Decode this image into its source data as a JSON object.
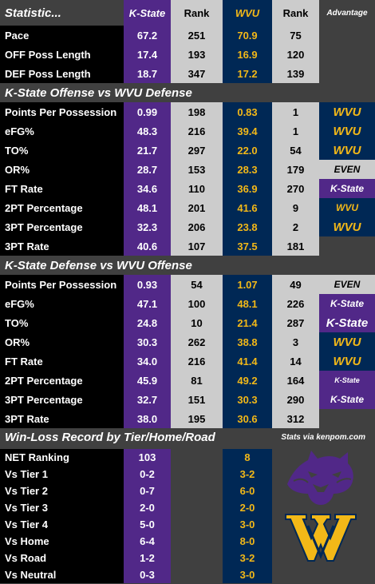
{
  "header": {
    "title": "Statistic...",
    "kstate": "K-State",
    "rank": "Rank",
    "wvu": "WVU",
    "rank2": "Rank",
    "advantage": "Advantage"
  },
  "pace_rows": [
    {
      "label": "Pace",
      "ks": "67.2",
      "kr": "251",
      "wv": "70.9",
      "wr": "75"
    },
    {
      "label": "OFF Poss Length",
      "ks": "17.4",
      "kr": "193",
      "wv": "16.9",
      "wr": "120"
    },
    {
      "label": "DEF Poss Length",
      "ks": "18.7",
      "kr": "347",
      "wv": "17.2",
      "wr": "139"
    }
  ],
  "section_ks_off": {
    "title": "K-State Offense vs WVU Defense",
    "rows": [
      {
        "label": "Points Per Possession",
        "ks": "0.99",
        "kr": "198",
        "wv": "0.83",
        "wr": "1",
        "adv": "WVU",
        "adv_style": "wvu"
      },
      {
        "label": "eFG%",
        "ks": "48.3",
        "kr": "216",
        "wv": "39.4",
        "wr": "1",
        "adv": "WVU",
        "adv_style": "wvu"
      },
      {
        "label": "TO%",
        "ks": "21.7",
        "kr": "297",
        "wv": "22.0",
        "wr": "54",
        "adv": "WVU",
        "adv_style": "wvu"
      },
      {
        "label": "OR%",
        "ks": "28.7",
        "kr": "153",
        "wv": "28.3",
        "wr": "179",
        "adv": "EVEN",
        "adv_style": "even"
      },
      {
        "label": "FT Rate",
        "ks": "34.6",
        "kr": "110",
        "wv": "36.9",
        "wr": "270",
        "adv": "K-State",
        "adv_style": "ks"
      },
      {
        "label": "2PT Percentage",
        "ks": "48.1",
        "kr": "201",
        "wv": "41.6",
        "wr": "9",
        "adv": "WVU",
        "adv_style": "wvu-s"
      },
      {
        "label": "3PT Percentage",
        "ks": "32.3",
        "kr": "206",
        "wv": "23.8",
        "wr": "2",
        "adv": "WVU",
        "adv_style": "wvu"
      },
      {
        "label": "3PT Rate",
        "ks": "40.6",
        "kr": "107",
        "wv": "37.5",
        "wr": "181",
        "adv": "",
        "adv_style": "none"
      }
    ]
  },
  "section_ks_def": {
    "title": "K-State Defense vs WVU Offense",
    "rows": [
      {
        "label": "Points Per Possession",
        "ks": "0.93",
        "kr": "54",
        "wv": "1.07",
        "wr": "49",
        "adv": "EVEN",
        "adv_style": "even"
      },
      {
        "label": "eFG%",
        "ks": "47.1",
        "kr": "100",
        "wv": "48.1",
        "wr": "226",
        "adv": "K-State",
        "adv_style": "ks"
      },
      {
        "label": "TO%",
        "ks": "24.8",
        "kr": "10",
        "wv": "21.4",
        "wr": "287",
        "adv": "K-State",
        "adv_style": "ks-l"
      },
      {
        "label": "OR%",
        "ks": "30.3",
        "kr": "262",
        "wv": "38.8",
        "wr": "3",
        "adv": "WVU",
        "adv_style": "wvu"
      },
      {
        "label": "FT Rate",
        "ks": "34.0",
        "kr": "216",
        "wv": "41.4",
        "wr": "14",
        "adv": "WVU",
        "adv_style": "wvu"
      },
      {
        "label": "2PT Percentage",
        "ks": "45.9",
        "kr": "81",
        "wv": "49.2",
        "wr": "164",
        "adv": "K-State",
        "adv_style": "ks-s"
      },
      {
        "label": "3PT Percentage",
        "ks": "32.7",
        "kr": "151",
        "wv": "30.3",
        "wr": "290",
        "adv": "K-State",
        "adv_style": "ks"
      },
      {
        "label": "3PT Rate",
        "ks": "38.0",
        "kr": "195",
        "wv": "30.6",
        "wr": "312",
        "adv": "",
        "adv_style": "none"
      }
    ]
  },
  "section_wl": {
    "title": "Win-Loss Record by Tier/Home/Road",
    "source": "Stats via kenpom.com",
    "rows": [
      {
        "label": "NET Ranking",
        "ks": "103",
        "wv": "8"
      },
      {
        "label": "Vs Tier 1",
        "ks": "0-2",
        "wv": "3-2"
      },
      {
        "label": "Vs Tier 2",
        "ks": "0-7",
        "wv": "6-0"
      },
      {
        "label": "Vs Tier 3",
        "ks": "2-0",
        "wv": "2-0"
      },
      {
        "label": "Vs Tier 4",
        "ks": "5-0",
        "wv": "3-0"
      },
      {
        "label": "Vs Home",
        "ks": "6-4",
        "wv": "8-0"
      },
      {
        "label": "Vs Road",
        "ks": "1-2",
        "wv": "3-2"
      },
      {
        "label": "Vs Neutral",
        "ks": "0-3",
        "wv": "3-0"
      }
    ]
  },
  "logos": {
    "kstate_logo": "wildcat-head-logo",
    "wvu_logo": "flying-wv-logo",
    "kstate_color": "#512888",
    "wvu_navy": "#002855",
    "wvu_gold": "#f2b818"
  }
}
